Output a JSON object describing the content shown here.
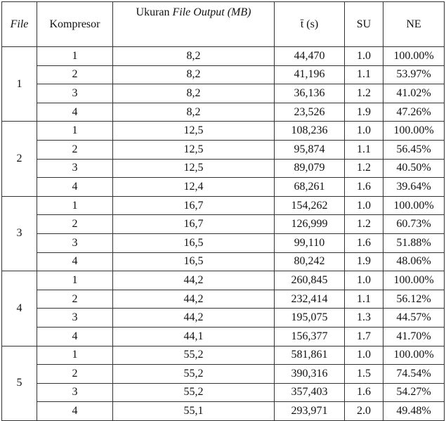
{
  "table": {
    "header": {
      "file": "File",
      "kompresor": "Kompresor",
      "ukuran": [
        "Ukuran",
        "File Output (MB)"
      ],
      "time": "t̄ (s)",
      "su": "SU",
      "ne": "NE"
    },
    "groups": [
      {
        "file": "1",
        "rows": [
          [
            "1",
            "8,2",
            "44,470",
            "1.0",
            "100.00%"
          ],
          [
            "2",
            "8,2",
            "41,196",
            "1.1",
            "53.97%"
          ],
          [
            "3",
            "8,2",
            "36,136",
            "1.2",
            "41.02%"
          ],
          [
            "4",
            "8,2",
            "23,526",
            "1.9",
            "47.26%"
          ]
        ]
      },
      {
        "file": "2",
        "rows": [
          [
            "1",
            "12,5",
            "108,236",
            "1.0",
            "100.00%"
          ],
          [
            "2",
            "12,5",
            "95,874",
            "1.1",
            "56.45%"
          ],
          [
            "3",
            "12,5",
            "89,079",
            "1.2",
            "40.50%"
          ],
          [
            "4",
            "12,4",
            "68,261",
            "1.6",
            "39.64%"
          ]
        ]
      },
      {
        "file": "3",
        "rows": [
          [
            "1",
            "16,7",
            "154,262",
            "1.0",
            "100.00%"
          ],
          [
            "2",
            "16,7",
            "126,999",
            "1.2",
            "60.73%"
          ],
          [
            "3",
            "16,5",
            "99,110",
            "1.6",
            "51.88%"
          ],
          [
            "4",
            "16,5",
            "80,242",
            "1.9",
            "48.06%"
          ]
        ]
      },
      {
        "file": "4",
        "rows": [
          [
            "1",
            "44,2",
            "260,845",
            "1.0",
            "100.00%"
          ],
          [
            "2",
            "44,2",
            "232,414",
            "1.1",
            "56.12%"
          ],
          [
            "3",
            "44,2",
            "195,075",
            "1.3",
            "44.57%"
          ],
          [
            "4",
            "44,1",
            "156,377",
            "1.7",
            "41.70%"
          ]
        ]
      },
      {
        "file": "5",
        "rows": [
          [
            "1",
            "55,2",
            "581,861",
            "1.0",
            "100.00%"
          ],
          [
            "2",
            "55,2",
            "390,316",
            "1.5",
            "74.54%"
          ],
          [
            "3",
            "55,2",
            "357,403",
            "1.6",
            "54.27%"
          ],
          [
            "4",
            "55,1",
            "293,971",
            "2.0",
            "49.48%"
          ]
        ]
      }
    ]
  }
}
